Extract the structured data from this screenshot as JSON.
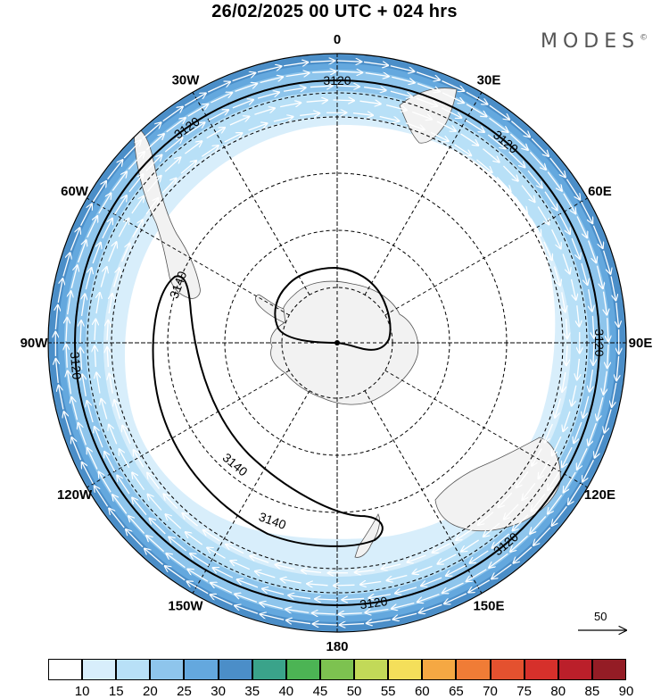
{
  "title": "26/02/2025  00 UTC  + 024 hrs",
  "brand": {
    "name": "MODES",
    "mark": "©"
  },
  "map": {
    "projection": "south-polar-stereographic",
    "lon_labels": [
      {
        "text": "0",
        "lon": 0
      },
      {
        "text": "30E",
        "lon": 30
      },
      {
        "text": "60E",
        "lon": 60
      },
      {
        "text": "90E",
        "lon": 90
      },
      {
        "text": "120E",
        "lon": 120
      },
      {
        "text": "150E",
        "lon": 150
      },
      {
        "text": "180",
        "lon": 180
      },
      {
        "text": "150W",
        "lon": -150
      },
      {
        "text": "120W",
        "lon": -120
      },
      {
        "text": "90W",
        "lon": -90
      },
      {
        "text": "60W",
        "lon": -60
      },
      {
        "text": "30W",
        "lon": -30
      }
    ],
    "contours": [
      {
        "value": 3120,
        "label": "3120"
      },
      {
        "value": 3140,
        "label": "3140"
      }
    ],
    "contour_labels": [
      {
        "text": "3120",
        "lon": 0
      },
      {
        "text": "3120",
        "lon": 40
      },
      {
        "text": "3120",
        "lon": 90
      },
      {
        "text": "3120",
        "lon": 140
      },
      {
        "text": "3120",
        "lon": 172
      },
      {
        "text": "3120",
        "lon": -95
      },
      {
        "text": "3120",
        "lon": -35
      },
      {
        "text": "3140",
        "lon": -70
      },
      {
        "text": "3140",
        "lon": -140
      },
      {
        "text": "3140",
        "lon": -160
      }
    ],
    "reference_vector": "50",
    "land_color": "#f2f2f2",
    "coast_color": "#555555"
  },
  "colorbar": {
    "ticks": [
      "10",
      "15",
      "20",
      "25",
      "30",
      "35",
      "40",
      "45",
      "50",
      "55",
      "60",
      "65",
      "70",
      "75",
      "80",
      "85",
      "90"
    ],
    "colors": [
      "#ffffff",
      "#d8eefb",
      "#b8e0f7",
      "#8ec5ec",
      "#64a8de",
      "#4b8ec8",
      "#3aa38a",
      "#4cb454",
      "#7dc250",
      "#c2d958",
      "#f4df5a",
      "#f5a843",
      "#f07c36",
      "#e4512f",
      "#d6302b",
      "#bb1f2a",
      "#941c25"
    ]
  }
}
